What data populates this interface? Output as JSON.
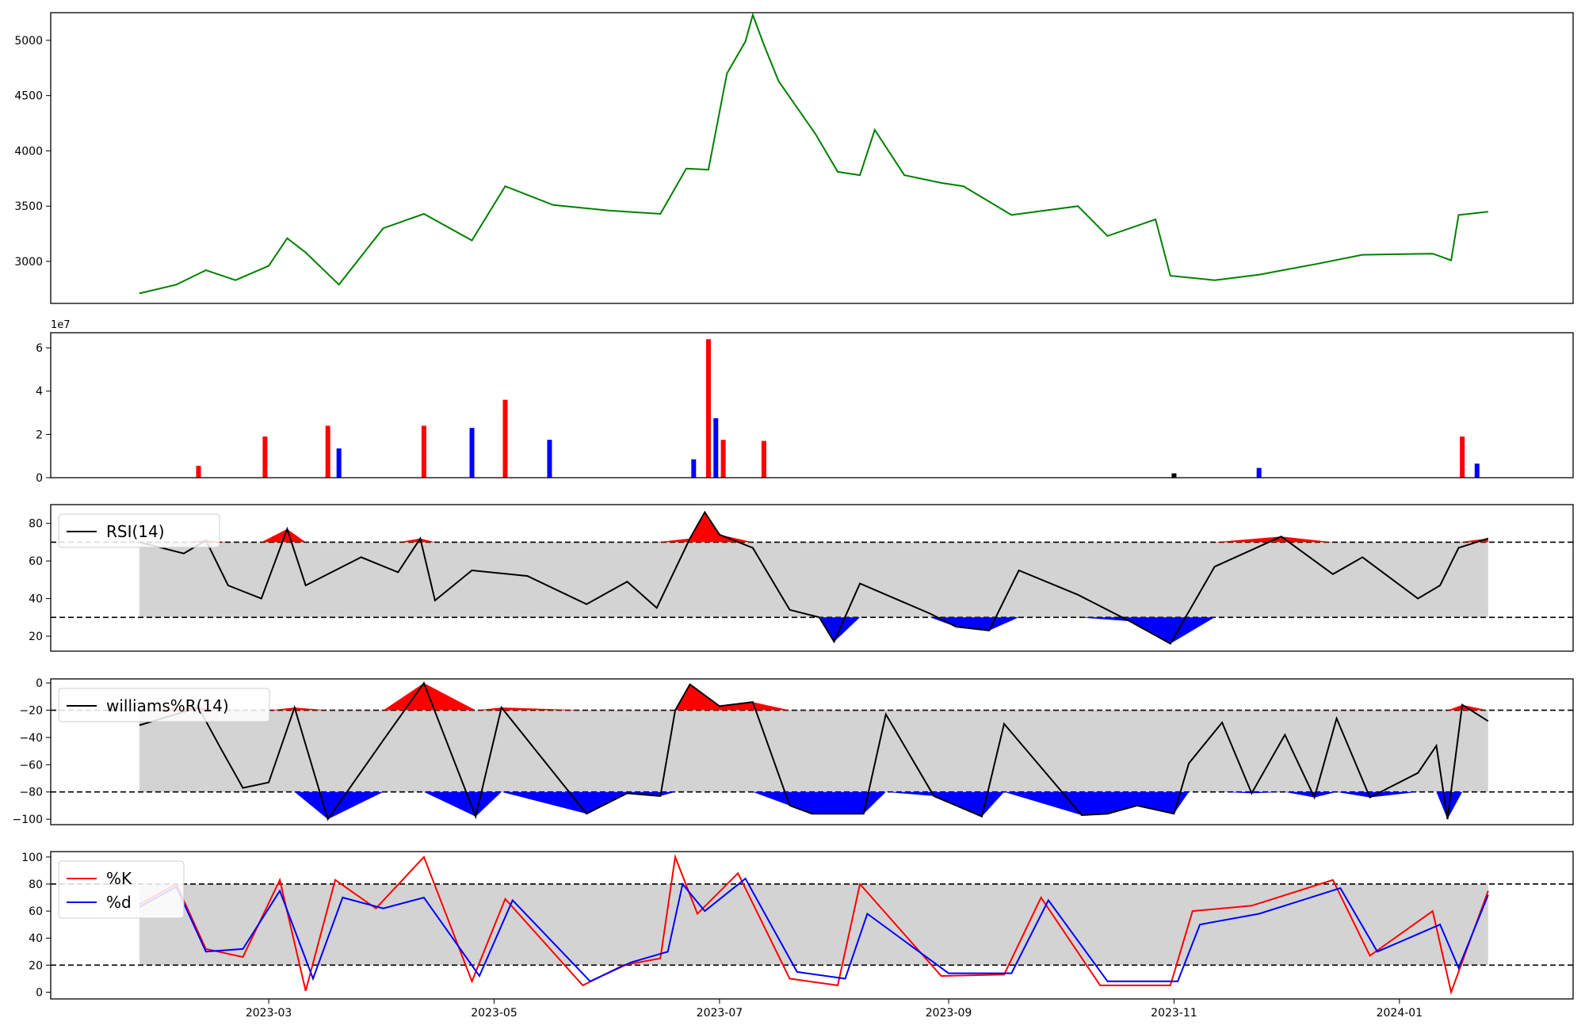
{
  "chart_data": [
    {
      "panel": "price",
      "type": "line",
      "ylim": [
        2620,
        5250
      ],
      "yticks": [
        3000,
        3500,
        4000,
        4500,
        5000
      ],
      "ytick_labels": [
        "3000",
        "3500",
        "4000",
        "4500",
        "5000"
      ],
      "color": "#008000",
      "series": [
        {
          "x": [
            "2023-01-25",
            "2023-02-04",
            "2023-02-12",
            "2023-02-20",
            "2023-03-01",
            "2023-03-06",
            "2023-03-11",
            "2023-03-20",
            "2023-04-01",
            "2023-04-12",
            "2023-04-25",
            "2023-05-04",
            "2023-05-17",
            "2023-06-01",
            "2023-06-15",
            "2023-06-22",
            "2023-06-28",
            "2023-07-03",
            "2023-07-08",
            "2023-07-10",
            "2023-07-13",
            "2023-07-17",
            "2023-07-27",
            "2023-08-02",
            "2023-08-08",
            "2023-08-12",
            "2023-08-20",
            "2023-08-30",
            "2023-09-05",
            "2023-09-18",
            "2023-10-06",
            "2023-10-14",
            "2023-10-27",
            "2023-10-31",
            "2023-11-12",
            "2023-11-24",
            "2023-12-10",
            "2023-12-22",
            "2024-01-10",
            "2024-01-15",
            "2024-01-17",
            "2024-01-25"
          ],
          "values": [
            2710,
            2790,
            2920,
            2830,
            2960,
            3210,
            3080,
            2790,
            3300,
            3430,
            3190,
            3680,
            3510,
            3460,
            3430,
            3840,
            3830,
            4700,
            4990,
            5230,
            4960,
            4630,
            4150,
            3810,
            3780,
            4190,
            3780,
            3710,
            3680,
            3420,
            3500,
            3230,
            3380,
            2870,
            2830,
            2880,
            2980,
            3060,
            3070,
            3010,
            3420,
            3450
          ]
        }
      ]
    },
    {
      "panel": "volume",
      "type": "bar",
      "ylim": [
        0,
        67000000
      ],
      "yticks": [
        0,
        20000000,
        40000000,
        60000000
      ],
      "ytick_labels": [
        "0",
        "2",
        "4",
        "6"
      ],
      "offset_label": "1e7",
      "colors": {
        "up": "#ff0000",
        "down": "#0000ff",
        "flat": "#000000"
      },
      "bars": [
        {
          "date": "2023-02-10",
          "value": 5500000,
          "dir": "up"
        },
        {
          "date": "2023-02-28",
          "value": 19000000,
          "dir": "up"
        },
        {
          "date": "2023-03-17",
          "value": 24000000,
          "dir": "up"
        },
        {
          "date": "2023-03-20",
          "value": 13500000,
          "dir": "down"
        },
        {
          "date": "2023-04-12",
          "value": 24000000,
          "dir": "up"
        },
        {
          "date": "2023-04-25",
          "value": 23000000,
          "dir": "down"
        },
        {
          "date": "2023-05-04",
          "value": 36000000,
          "dir": "up"
        },
        {
          "date": "2023-05-16",
          "value": 17500000,
          "dir": "down"
        },
        {
          "date": "2023-06-24",
          "value": 8500000,
          "dir": "down"
        },
        {
          "date": "2023-06-28",
          "value": 64000000,
          "dir": "up"
        },
        {
          "date": "2023-06-30",
          "value": 27500000,
          "dir": "down"
        },
        {
          "date": "2023-07-02",
          "value": 17500000,
          "dir": "up"
        },
        {
          "date": "2023-07-13",
          "value": 17000000,
          "dir": "up"
        },
        {
          "date": "2023-11-01",
          "value": 2000000,
          "dir": "flat"
        },
        {
          "date": "2023-11-24",
          "value": 4500000,
          "dir": "down"
        },
        {
          "date": "2024-01-18",
          "value": 19000000,
          "dir": "up"
        },
        {
          "date": "2024-01-22",
          "value": 6500000,
          "dir": "down"
        }
      ]
    },
    {
      "panel": "rsi",
      "type": "line",
      "ylim": [
        12,
        90
      ],
      "yticks": [
        20,
        40,
        60,
        80
      ],
      "ytick_labels": [
        "20",
        "40",
        "60",
        "80"
      ],
      "bands": {
        "upper": 70,
        "lower": 30
      },
      "legend": [
        "RSI(14)"
      ],
      "series": [
        {
          "name": "RSI(14)",
          "x": [
            "2023-01-25",
            "2023-02-06",
            "2023-02-12",
            "2023-02-18",
            "2023-02-27",
            "2023-03-06",
            "2023-03-11",
            "2023-03-26",
            "2023-04-05",
            "2023-04-11",
            "2023-04-15",
            "2023-04-25",
            "2023-05-10",
            "2023-05-26",
            "2023-06-06",
            "2023-06-14",
            "2023-06-23",
            "2023-06-27",
            "2023-07-01",
            "2023-07-10",
            "2023-07-20",
            "2023-07-28",
            "2023-08-01",
            "2023-08-08",
            "2023-08-27",
            "2023-09-03",
            "2023-09-12",
            "2023-09-20",
            "2023-10-06",
            "2023-10-20",
            "2023-10-31",
            "2023-11-12",
            "2023-11-30",
            "2023-12-14",
            "2023-12-22",
            "2024-01-06",
            "2024-01-12",
            "2024-01-17",
            "2024-01-25"
          ],
          "values": [
            70,
            64,
            71,
            47,
            40,
            77,
            47,
            62,
            54,
            72,
            39,
            55,
            52,
            37,
            49,
            35,
            72,
            86,
            74,
            67,
            34,
            30,
            17,
            48,
            32,
            25,
            23,
            55,
            42,
            28,
            16,
            57,
            73,
            53,
            62,
            40,
            47,
            67,
            72
          ]
        }
      ]
    },
    {
      "panel": "williams_r",
      "type": "line",
      "ylim": [
        -104,
        3
      ],
      "yticks": [
        0,
        -20,
        -40,
        -60,
        -80,
        -100
      ],
      "ytick_labels": [
        "0",
        "−20",
        "−40",
        "−60",
        "−80",
        "−100"
      ],
      "bands": {
        "upper": -20,
        "lower": -80
      },
      "legend": [
        "williams%R(14)"
      ],
      "series": [
        {
          "name": "williams%R(14)",
          "x": [
            "2023-01-25",
            "2023-02-10",
            "2023-02-16",
            "2023-02-22",
            "2023-03-01",
            "2023-03-08",
            "2023-03-17",
            "2023-04-01",
            "2023-04-12",
            "2023-04-26",
            "2023-05-03",
            "2023-05-26",
            "2023-06-06",
            "2023-06-15",
            "2023-06-19",
            "2023-06-23",
            "2023-07-01",
            "2023-07-10",
            "2023-07-20",
            "2023-07-26",
            "2023-08-09",
            "2023-08-15",
            "2023-08-28",
            "2023-09-10",
            "2023-09-16",
            "2023-10-07",
            "2023-10-14",
            "2023-10-22",
            "2023-11-01",
            "2023-11-05",
            "2023-11-14",
            "2023-11-22",
            "2023-12-01",
            "2023-12-09",
            "2023-12-15",
            "2023-12-24",
            "2024-01-06",
            "2024-01-11",
            "2024-01-14",
            "2024-01-18",
            "2024-01-25"
          ],
          "values": [
            -31,
            -18,
            -48,
            -77,
            -73,
            -18,
            -100,
            -42,
            0,
            -98,
            -18,
            -96,
            -81,
            -83,
            -20,
            -1,
            -17,
            -14,
            -90,
            -96,
            -96,
            -23,
            -83,
            -98,
            -30,
            -97,
            -96,
            -90,
            -96,
            -59,
            -29,
            -81,
            -38,
            -84,
            -26,
            -84,
            -66,
            -46,
            -100,
            -16,
            -28
          ]
        }
      ]
    },
    {
      "panel": "stochastic",
      "type": "line",
      "ylim": [
        -5,
        104
      ],
      "yticks": [
        0,
        20,
        40,
        60,
        80,
        100
      ],
      "ytick_labels": [
        "0",
        "20",
        "40",
        "60",
        "80",
        "100"
      ],
      "bands": {
        "upper": 80,
        "lower": 20
      },
      "legend": [
        "%K",
        "%d"
      ],
      "xtick_labels": [
        "2023-03",
        "2023-05",
        "2023-07",
        "2023-09",
        "2023-11",
        "2024-01"
      ],
      "xticks": [
        "2023-03-01",
        "2023-05-01",
        "2023-07-01",
        "2023-09-01",
        "2023-11-01",
        "2024-01-01"
      ],
      "xlim": [
        "2023-01-01",
        "2024-02-17"
      ],
      "series": [
        {
          "name": "%K",
          "color": "#ff0000",
          "x": [
            "2023-01-25",
            "2023-02-04",
            "2023-02-12",
            "2023-02-22",
            "2023-03-04",
            "2023-03-11",
            "2023-03-19",
            "2023-03-30",
            "2023-04-12",
            "2023-04-25",
            "2023-05-04",
            "2023-05-25",
            "2023-06-05",
            "2023-06-15",
            "2023-06-19",
            "2023-06-25",
            "2023-07-06",
            "2023-07-20",
            "2023-08-02",
            "2023-08-08",
            "2023-08-30",
            "2023-09-16",
            "2023-09-26",
            "2023-10-12",
            "2023-10-31",
            "2023-11-06",
            "2023-11-22",
            "2023-12-14",
            "2023-12-24",
            "2024-01-10",
            "2024-01-15",
            "2024-01-25"
          ],
          "values": [
            65,
            80,
            32,
            26,
            83,
            1,
            83,
            62,
            100,
            8,
            69,
            5,
            20,
            25,
            100,
            58,
            88,
            10,
            5,
            80,
            12,
            13,
            70,
            5,
            5,
            60,
            64,
            83,
            27,
            60,
            0,
            75
          ]
        },
        {
          "name": "%d",
          "color": "#0000ff",
          "x": [
            "2023-01-25",
            "2023-02-04",
            "2023-02-12",
            "2023-02-22",
            "2023-03-04",
            "2023-03-13",
            "2023-03-21",
            "2023-04-01",
            "2023-04-12",
            "2023-04-27",
            "2023-05-06",
            "2023-05-27",
            "2023-06-07",
            "2023-06-17",
            "2023-06-21",
            "2023-06-27",
            "2023-07-08",
            "2023-07-22",
            "2023-08-04",
            "2023-08-10",
            "2023-09-01",
            "2023-09-18",
            "2023-09-28",
            "2023-10-14",
            "2023-11-02",
            "2023-11-08",
            "2023-11-24",
            "2023-12-16",
            "2023-12-26",
            "2024-01-12",
            "2024-01-17",
            "2024-01-25"
          ],
          "values": [
            63,
            78,
            30,
            32,
            75,
            10,
            70,
            62,
            70,
            12,
            68,
            8,
            22,
            30,
            80,
            60,
            84,
            15,
            10,
            58,
            14,
            14,
            68,
            8,
            8,
            50,
            58,
            77,
            30,
            50,
            18,
            72
          ]
        }
      ]
    }
  ]
}
